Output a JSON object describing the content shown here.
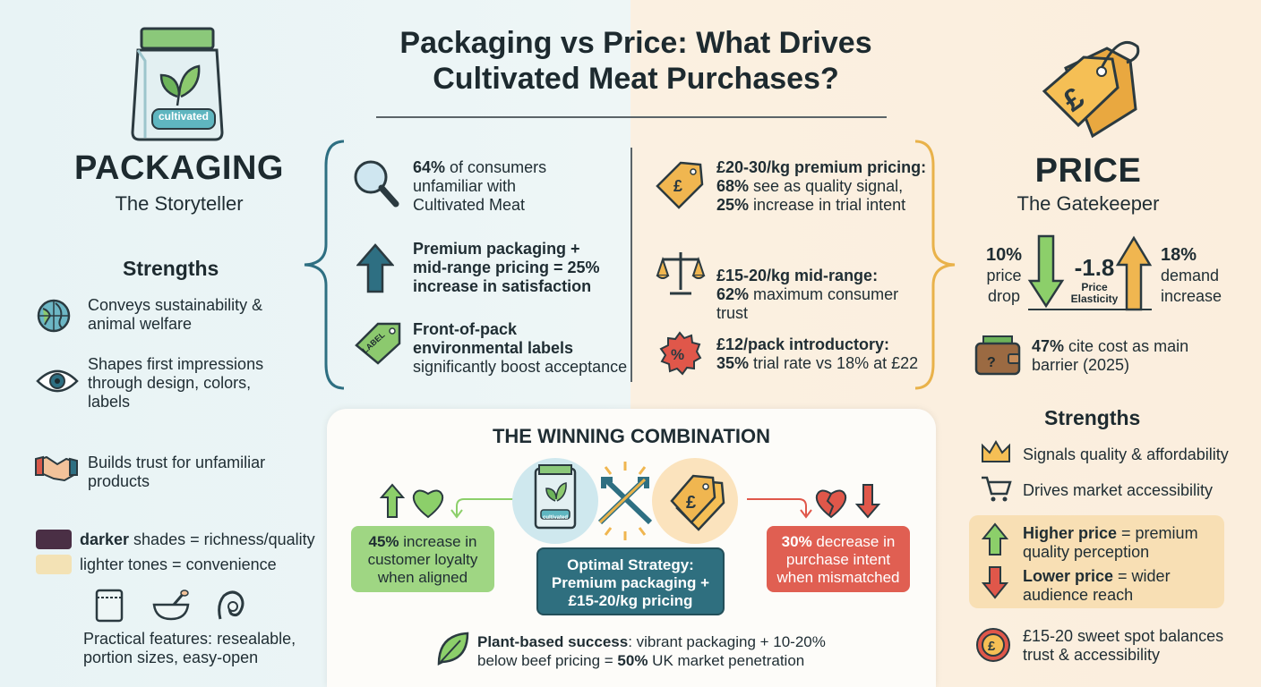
{
  "title": "Packaging vs Price: What Drives Cultivated Meat Purchases?",
  "packaging": {
    "bag_label": "cultivated",
    "heading": "PACKAGING",
    "subheading": "The Storyteller",
    "strengths_title": "Strengths",
    "strengths": [
      "Conveys sustainability & animal welfare",
      "Shapes first impressions through design, colors, labels",
      "Builds trust for unfamiliar products"
    ],
    "darker_label": "darker",
    "darker_text": " shades = richness/quality",
    "lighter_text": "lighter tones = convenience",
    "practical": "Practical features: resealable, portion sizes, easy-open",
    "colors": {
      "dark": "#4a2f45",
      "light": "#f3e2b5"
    }
  },
  "middle_left": [
    {
      "bold": "64%",
      "text": " of consumers unfamiliar with Cultivated Meat"
    },
    {
      "bold": "Premium packaging + mid-range pricing = 25% increase in satisfaction",
      "text": ""
    },
    {
      "bold": "Front-of-pack environmental labels",
      "text": " significantly boost acceptance",
      "icon_label": "LABEL"
    }
  ],
  "middle_right": [
    {
      "line1": "£20-30/kg premium pricing:",
      "b2": "68%",
      "t2": " see as quality signal,",
      "b3": "25%",
      "t3": " increase in trial intent"
    },
    {
      "line1": "£15-20/kg mid-range:",
      "b2": "62%",
      "t2": " maximum consumer trust",
      "b3": "",
      "t3": ""
    },
    {
      "line1": "£12/pack introductory:",
      "b2": "35%",
      "t2": " trial rate vs 18% at £22",
      "b3": "",
      "t3": ""
    }
  ],
  "price": {
    "heading": "PRICE",
    "subheading": "The Gatekeeper",
    "drop_value": "10%",
    "drop_label": "price drop",
    "elasticity": "-1.8",
    "elasticity_label": "Price Elasticity",
    "increase_value": "18%",
    "increase_label": "demand increase",
    "barrier_bold": "47%",
    "barrier_text": " cite cost as main barrier (2025)",
    "strengths_title": "Strengths",
    "strengths": [
      "Signals quality & affordability",
      "Drives market accessibility"
    ],
    "higher_bold": "Higher price",
    "higher_text": " = premium quality perception",
    "lower_bold": "Lower price",
    "lower_text": " = wider audience reach",
    "sweet_spot": "£15-20 sweet spot balances trust & accessibility"
  },
  "winning": {
    "title": "THE WINNING COMBINATION",
    "loyalty_bold": "45%",
    "loyalty_text": " increase in customer loyalty when aligned",
    "strategy": "Optimal Strategy: Premium packaging + £15-20/kg pricing",
    "decrease_bold": "30%",
    "decrease_text": " decrease in purchase intent when mismatched",
    "plant_bold": "Plant-based success",
    "plant_text1": ": vibrant packaging + 10-20%",
    "plant_text2": "below beef pricing = ",
    "plant_bold2": "50%",
    "plant_text3": " UK market penetration",
    "mini_bag_label": "cultivated"
  },
  "colors": {
    "teal": "#2e6f82",
    "amber": "#e9b24a",
    "green": "#8ccf6a",
    "red": "#e0574a",
    "strategy": "#2f6f7f"
  }
}
